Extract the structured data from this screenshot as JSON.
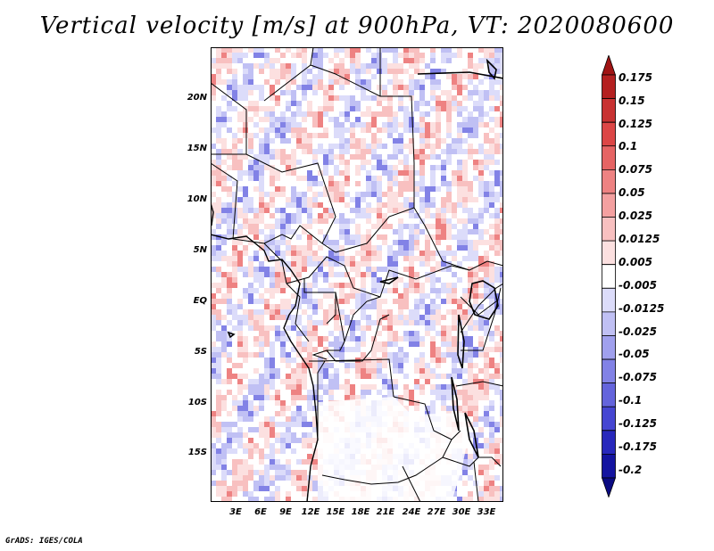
{
  "title": "Vertical velocity [m/s] at 900hPa, VT: 2020080600",
  "footer": "GrADS: IGES/COLA",
  "map": {
    "lat_labels": [
      "20N",
      "15N",
      "10N",
      "5N",
      "EQ",
      "5S",
      "10S",
      "15S"
    ],
    "lon_labels": [
      "3E",
      "6E",
      "9E",
      "12E",
      "15E",
      "18E",
      "21E",
      "24E",
      "27E",
      "30E",
      "33E"
    ]
  },
  "colorbar": {
    "labels": [
      "0.175",
      "0.15",
      "0.125",
      "0.1",
      "0.075",
      "0.05",
      "0.025",
      "0.0125",
      "0.005",
      "-0.005",
      "-0.0125",
      "-0.025",
      "-0.05",
      "-0.075",
      "-0.1",
      "-0.125",
      "-0.175",
      "-0.2"
    ],
    "colors": [
      "#a01414",
      "#b42020",
      "#c83232",
      "#dc4646",
      "#e66464",
      "#ee8282",
      "#f4a0a0",
      "#f8c0c0",
      "#fce0e0",
      "#ffffff",
      "#dcdcfa",
      "#c0c0f4",
      "#a0a0ee",
      "#8282e6",
      "#6464dc",
      "#4646d2",
      "#2828bc",
      "#1414a0",
      "#0a0a82"
    ]
  }
}
